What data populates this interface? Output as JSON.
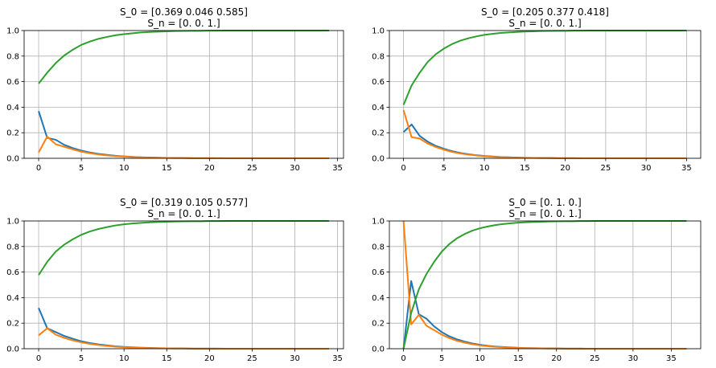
{
  "figure": {
    "colors": {
      "series_1": "#1f77b4",
      "series_2": "#ff7f0e",
      "series_3": "#2ca02c",
      "grid": "#b0b0b0"
    }
  },
  "chart_data": [
    {
      "type": "line",
      "title_line1": "S_0 = [0.369 0.046 0.585]",
      "title_line2": "S_n = [0. 0. 1.]",
      "xlim": [
        -1.7,
        35.7
      ],
      "ylim": [
        0,
        1
      ],
      "xticks": [
        0,
        5,
        10,
        15,
        20,
        25,
        30,
        35
      ],
      "yticks": [
        0.0,
        0.2,
        0.4,
        0.6,
        0.8,
        1.0
      ],
      "grid": true,
      "x": [
        0,
        1,
        2,
        3,
        4,
        5,
        6,
        7,
        8,
        9,
        10,
        11,
        12,
        13,
        14,
        15,
        16,
        17,
        18,
        19,
        20,
        21,
        22,
        23,
        24,
        25,
        26,
        27,
        28,
        29,
        30,
        31,
        32,
        33,
        34
      ],
      "series": [
        {
          "color": "#1f77b4",
          "values": [
            0.369,
            0.16,
            0.145,
            0.105,
            0.08,
            0.06,
            0.046,
            0.035,
            0.027,
            0.02,
            0.015,
            0.011,
            0.008,
            0.006,
            0.005,
            0.003,
            0.002,
            0.002,
            0.001,
            0.001,
            0.001,
            0.001,
            0,
            0,
            0,
            0,
            0,
            0,
            0,
            0,
            0,
            0,
            0,
            0,
            0
          ]
        },
        {
          "color": "#ff7f0e",
          "values": [
            0.046,
            0.17,
            0.11,
            0.09,
            0.07,
            0.052,
            0.04,
            0.03,
            0.023,
            0.017,
            0.013,
            0.01,
            0.007,
            0.005,
            0.004,
            0.003,
            0.002,
            0.002,
            0.001,
            0.001,
            0.001,
            0,
            0,
            0,
            0,
            0,
            0,
            0,
            0,
            0,
            0,
            0,
            0,
            0,
            0
          ]
        },
        {
          "color": "#2ca02c",
          "values": [
            0.585,
            0.67,
            0.745,
            0.805,
            0.85,
            0.888,
            0.914,
            0.935,
            0.95,
            0.963,
            0.972,
            0.979,
            0.985,
            0.989,
            0.991,
            0.994,
            0.996,
            0.997,
            0.998,
            0.998,
            0.999,
            0.999,
            1,
            1,
            1,
            1,
            1,
            1,
            1,
            1,
            1,
            1,
            1,
            1,
            1
          ]
        }
      ]
    },
    {
      "type": "line",
      "title_line1": "S_0 = [0.205 0.377 0.418]",
      "title_line2": "S_n = [0. 0. 1.]",
      "xlim": [
        -1.75,
        36.75
      ],
      "ylim": [
        0,
        1
      ],
      "xticks": [
        0,
        5,
        10,
        15,
        20,
        25,
        30,
        35
      ],
      "yticks": [
        0.0,
        0.2,
        0.4,
        0.6,
        0.8,
        1.0
      ],
      "grid": true,
      "x": [
        0,
        1,
        2,
        3,
        4,
        5,
        6,
        7,
        8,
        9,
        10,
        11,
        12,
        13,
        14,
        15,
        16,
        17,
        18,
        19,
        20,
        21,
        22,
        23,
        24,
        25,
        26,
        27,
        28,
        29,
        30,
        31,
        32,
        33,
        34,
        35
      ],
      "series": [
        {
          "color": "#1f77b4",
          "values": [
            0.205,
            0.265,
            0.175,
            0.13,
            0.097,
            0.074,
            0.056,
            0.042,
            0.032,
            0.024,
            0.018,
            0.014,
            0.01,
            0.008,
            0.006,
            0.004,
            0.003,
            0.002,
            0.002,
            0.001,
            0.001,
            0.001,
            0,
            0,
            0,
            0,
            0,
            0,
            0,
            0,
            0,
            0,
            0,
            0,
            0,
            0
          ]
        },
        {
          "color": "#ff7f0e",
          "values": [
            0.377,
            0.165,
            0.155,
            0.115,
            0.088,
            0.067,
            0.05,
            0.038,
            0.029,
            0.022,
            0.016,
            0.012,
            0.009,
            0.007,
            0.005,
            0.004,
            0.003,
            0.002,
            0.002,
            0.001,
            0.001,
            0.001,
            0,
            0,
            0,
            0,
            0,
            0,
            0,
            0,
            0,
            0,
            0,
            0,
            0,
            0
          ]
        },
        {
          "color": "#2ca02c",
          "values": [
            0.418,
            0.57,
            0.67,
            0.755,
            0.815,
            0.859,
            0.894,
            0.92,
            0.939,
            0.954,
            0.966,
            0.974,
            0.981,
            0.985,
            0.989,
            0.992,
            0.994,
            0.996,
            0.997,
            0.998,
            0.998,
            0.999,
            0.999,
            1,
            1,
            1,
            1,
            1,
            1,
            1,
            1,
            1,
            1,
            1,
            1,
            1
          ]
        }
      ]
    },
    {
      "type": "line",
      "title_line1": "S_0 = [0.319 0.105 0.577]",
      "title_line2": "S_n = [0. 0. 1.]",
      "xlim": [
        -1.7,
        35.7
      ],
      "ylim": [
        0,
        1
      ],
      "xticks": [
        0,
        5,
        10,
        15,
        20,
        25,
        30,
        35
      ],
      "yticks": [
        0.0,
        0.2,
        0.4,
        0.6,
        0.8,
        1.0
      ],
      "grid": true,
      "x": [
        0,
        1,
        2,
        3,
        4,
        5,
        6,
        7,
        8,
        9,
        10,
        11,
        12,
        13,
        14,
        15,
        16,
        17,
        18,
        19,
        20,
        21,
        22,
        23,
        24,
        25,
        26,
        27,
        28,
        29,
        30,
        31,
        32,
        33,
        34
      ],
      "series": [
        {
          "color": "#1f77b4",
          "values": [
            0.319,
            0.16,
            0.13,
            0.1,
            0.078,
            0.058,
            0.044,
            0.034,
            0.026,
            0.019,
            0.014,
            0.011,
            0.008,
            0.006,
            0.004,
            0.003,
            0.002,
            0.002,
            0.001,
            0.001,
            0.001,
            0.001,
            0,
            0,
            0,
            0,
            0,
            0,
            0,
            0,
            0,
            0,
            0,
            0,
            0
          ]
        },
        {
          "color": "#ff7f0e",
          "values": [
            0.105,
            0.16,
            0.11,
            0.085,
            0.065,
            0.05,
            0.038,
            0.029,
            0.022,
            0.016,
            0.012,
            0.009,
            0.007,
            0.005,
            0.004,
            0.003,
            0.002,
            0.002,
            0.001,
            0.001,
            0.001,
            0,
            0,
            0,
            0,
            0,
            0,
            0,
            0,
            0,
            0,
            0,
            0,
            0,
            0
          ]
        },
        {
          "color": "#2ca02c",
          "values": [
            0.577,
            0.68,
            0.76,
            0.815,
            0.857,
            0.892,
            0.918,
            0.937,
            0.952,
            0.965,
            0.974,
            0.98,
            0.985,
            0.989,
            0.992,
            0.994,
            0.996,
            0.997,
            0.998,
            0.998,
            0.999,
            0.999,
            1,
            1,
            1,
            1,
            1,
            1,
            1,
            1,
            1,
            1,
            1,
            1,
            1
          ]
        }
      ]
    },
    {
      "type": "line",
      "title_line1": "S_0 = [0. 1. 0.]",
      "title_line2": "S_n = [0. 0. 1.]",
      "xlim": [
        -1.85,
        38.85
      ],
      "ylim": [
        0,
        1
      ],
      "xticks": [
        0,
        5,
        10,
        15,
        20,
        25,
        30,
        35
      ],
      "yticks": [
        0.0,
        0.2,
        0.4,
        0.6,
        0.8,
        1.0
      ],
      "grid": true,
      "x": [
        0,
        1,
        2,
        3,
        4,
        5,
        6,
        7,
        8,
        9,
        10,
        11,
        12,
        13,
        14,
        15,
        16,
        17,
        18,
        19,
        20,
        21,
        22,
        23,
        24,
        25,
        26,
        27,
        28,
        29,
        30,
        31,
        32,
        33,
        34,
        35,
        36,
        37
      ],
      "series": [
        {
          "color": "#1f77b4",
          "values": [
            0,
            0.53,
            0.27,
            0.235,
            0.175,
            0.13,
            0.097,
            0.073,
            0.055,
            0.041,
            0.031,
            0.023,
            0.017,
            0.013,
            0.01,
            0.007,
            0.005,
            0.004,
            0.003,
            0.002,
            0.002,
            0.001,
            0.001,
            0.001,
            0,
            0,
            0,
            0,
            0,
            0,
            0,
            0,
            0,
            0,
            0,
            0,
            0,
            0
          ]
        },
        {
          "color": "#ff7f0e",
          "values": [
            1.0,
            0.19,
            0.265,
            0.18,
            0.145,
            0.11,
            0.083,
            0.062,
            0.047,
            0.035,
            0.026,
            0.02,
            0.015,
            0.011,
            0.008,
            0.006,
            0.005,
            0.004,
            0.003,
            0.002,
            0.002,
            0.001,
            0.001,
            0.001,
            0,
            0,
            0,
            0,
            0,
            0,
            0,
            0,
            0,
            0,
            0,
            0,
            0,
            0
          ]
        },
        {
          "color": "#2ca02c",
          "values": [
            0,
            0.28,
            0.465,
            0.585,
            0.68,
            0.76,
            0.82,
            0.865,
            0.898,
            0.924,
            0.943,
            0.957,
            0.968,
            0.976,
            0.982,
            0.987,
            0.99,
            0.992,
            0.994,
            0.996,
            0.997,
            0.998,
            0.998,
            0.999,
            0.999,
            1,
            1,
            1,
            1,
            1,
            1,
            1,
            1,
            1,
            1,
            1,
            1,
            1
          ]
        }
      ]
    }
  ]
}
